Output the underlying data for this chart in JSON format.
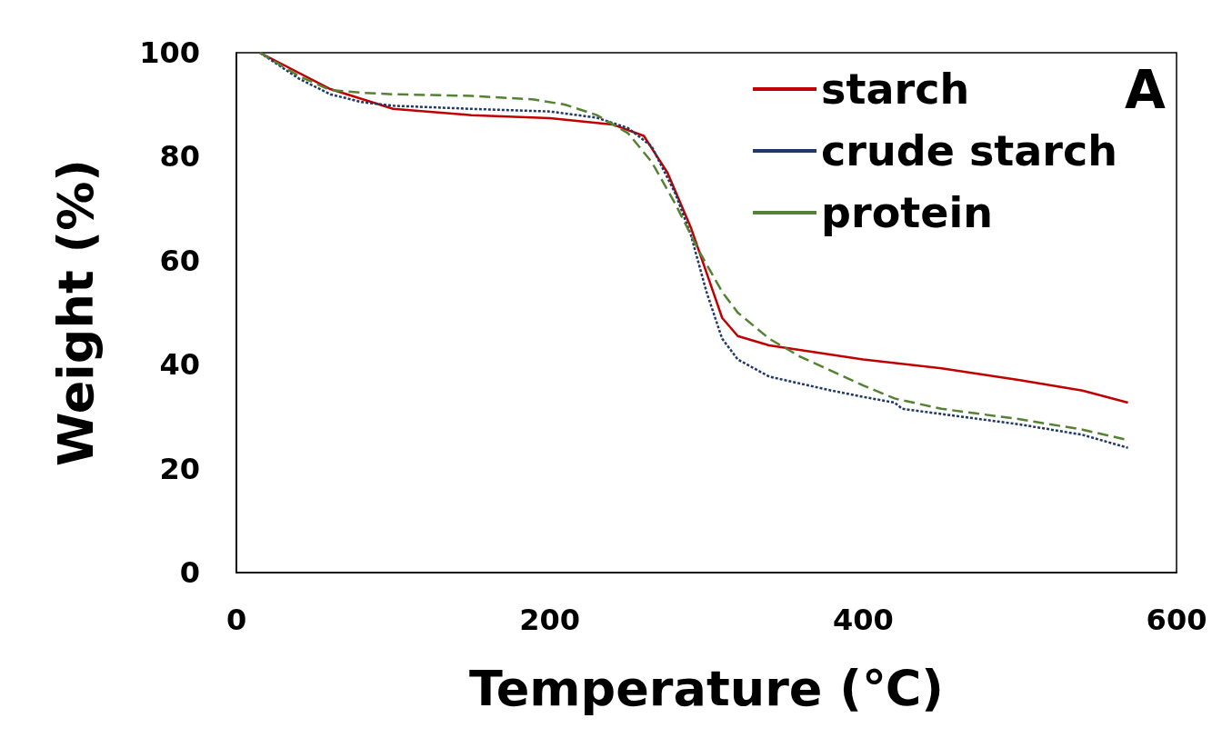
{
  "chart_data": {
    "type": "line",
    "xlabel": "Temperature (℃)",
    "ylabel": "Weight (%)",
    "xlim": [
      0,
      600
    ],
    "xticks": [
      0,
      200,
      400,
      600
    ],
    "ylim": [
      0,
      100
    ],
    "yticks": [
      0,
      20,
      40,
      60,
      80,
      100
    ],
    "grid": false,
    "legend": "top right",
    "marker": "none",
    "annotations": [
      "A"
    ],
    "series": [
      {
        "name": "starch",
        "color": "#c00000",
        "line_style": "solid",
        "x": [
          15,
          60,
          100,
          150,
          200,
          240,
          260,
          275,
          290,
          300,
          310,
          320,
          340,
          400,
          450,
          500,
          540,
          569
        ],
        "values": [
          100,
          93,
          89.2,
          88,
          87.4,
          86.2,
          84,
          77,
          66.4,
          57.7,
          49,
          45.5,
          43.7,
          41,
          39.3,
          37,
          35,
          32.7
        ]
      },
      {
        "name": "crude starch",
        "color": "#1f3864",
        "line_style": "dotted",
        "x": [
          15,
          40,
          60,
          80,
          100,
          150,
          200,
          230,
          250,
          265,
          280,
          290,
          300,
          310,
          320,
          340,
          380,
          400,
          420,
          425,
          450,
          500,
          540,
          569
        ],
        "values": [
          100,
          95,
          92,
          90.5,
          89.8,
          89.2,
          88.7,
          87.5,
          85.5,
          82,
          73,
          65,
          54,
          45,
          41,
          37.7,
          35,
          33.8,
          32.7,
          31.5,
          30.5,
          28.5,
          26.5,
          24
        ]
      },
      {
        "name": "protein",
        "color": "#548235",
        "line_style": "dashed",
        "x": [
          15,
          40,
          60,
          80,
          100,
          150,
          190,
          210,
          230,
          250,
          265,
          280,
          295,
          310,
          320,
          340,
          360,
          400,
          420,
          450,
          500,
          540,
          569
        ],
        "values": [
          100,
          95.5,
          92.8,
          92.3,
          92,
          91.7,
          91,
          90,
          88,
          84.5,
          79,
          71,
          62,
          54,
          50,
          45,
          41.5,
          36,
          33.5,
          31.5,
          29.5,
          27.5,
          25.5
        ]
      }
    ]
  }
}
